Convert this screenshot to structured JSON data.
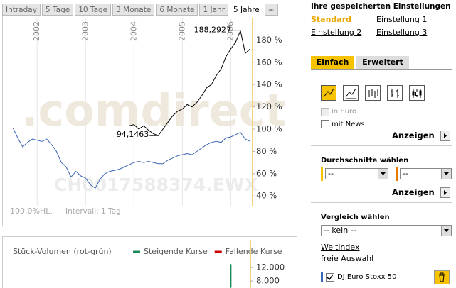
{
  "tabs": [
    "Intraday",
    "5 Tage",
    "10 Tage",
    "3 Monate",
    "6 Monate",
    "1 Jahr",
    "5 Jahre",
    "∞"
  ],
  "active_tab": "5 Jahre",
  "chart_data": [
    {
      "type": "line",
      "watermark_logo": ".comdirect",
      "watermark_symbol": "CH0017588374.EWX",
      "x": [
        2001.5,
        2001.6,
        2001.7,
        2001.8,
        2001.9,
        2002.0,
        2002.1,
        2002.2,
        2002.3,
        2002.4,
        2002.5,
        2002.6,
        2002.7,
        2002.8,
        2002.9,
        2003.0,
        2003.1,
        2003.2,
        2003.3,
        2003.4,
        2003.5,
        2003.6,
        2003.7,
        2003.8,
        2003.9,
        2004.0,
        2004.1,
        2004.2,
        2004.3,
        2004.4,
        2004.5,
        2004.6,
        2004.7,
        2004.8,
        2004.9,
        2005.0,
        2005.1,
        2005.2,
        2005.3,
        2005.4,
        2005.5,
        2005.6,
        2005.7,
        2005.8,
        2005.9,
        2006.0,
        2006.1,
        2006.2,
        2006.3,
        2006.4
      ],
      "xlim": [
        2001.35,
        2006.45
      ],
      "xticks": [
        2002,
        2003,
        2004,
        2005,
        2006
      ],
      "ylim": [
        31.2,
        200
      ],
      "yticks": [
        {
          "value": 40,
          "label": "40 %"
        },
        {
          "value": 60,
          "label": "60 %"
        },
        {
          "value": 80,
          "label": "80 %"
        },
        {
          "value": 100,
          "label": "100 %"
        },
        {
          "value": 120,
          "label": "120 %"
        },
        {
          "value": 140,
          "label": "140 %"
        },
        {
          "value": 160,
          "label": "160 %"
        },
        {
          "value": 180,
          "label": "180 %"
        }
      ],
      "series": [
        {
          "color": "#000000",
          "values": [
            null,
            null,
            null,
            null,
            null,
            null,
            null,
            null,
            null,
            null,
            null,
            null,
            null,
            null,
            null,
            null,
            null,
            null,
            null,
            null,
            null,
            null,
            null,
            null,
            103,
            104,
            100,
            103,
            99,
            96,
            94.1463,
            100,
            106,
            112,
            116,
            118,
            122,
            120,
            124,
            130,
            137,
            140,
            148,
            154,
            165,
            172,
            178,
            188.2927,
            168,
            172
          ]
        },
        {
          "color": "#3a64b4",
          "values": [
            101,
            92,
            84,
            88,
            91,
            90,
            89,
            91,
            86,
            80,
            70,
            66,
            57,
            62,
            58,
            56,
            50,
            47,
            55,
            60,
            62,
            63,
            64,
            66,
            68,
            70,
            71,
            70,
            71,
            70,
            69,
            69,
            72,
            74,
            76,
            77,
            78,
            77,
            80,
            83,
            86,
            88,
            89,
            88,
            92,
            93,
            95,
            97,
            91,
            89
          ]
        }
      ],
      "annotations": [
        {
          "x": 2006.2,
          "value": 188.2927,
          "label": "188,2927"
        },
        {
          "x": 2004.5,
          "value": 94.1463,
          "label": "94,1463"
        }
      ],
      "scale_label": "100,0%HL.",
      "interval_label": "Intervall: 1 Tag"
    },
    {
      "type": "bar",
      "title": "Stück-Volumen (rot-grün)",
      "xlim": [
        2001.35,
        2006.45
      ],
      "ylim": [
        6000,
        13500
      ],
      "yticks": [
        {
          "value": 8000,
          "label": "8.000"
        },
        {
          "value": 12000,
          "label": "12.000"
        }
      ],
      "series": [
        {
          "name": "Steigende Kurse",
          "color": "#1a8a5a",
          "x": [
            2006.0
          ],
          "values": [
            13000
          ]
        },
        {
          "name": "Fallende Kurse",
          "color": "#cc0000",
          "x": [],
          "values": []
        }
      ]
    }
  ],
  "settings": {
    "title": "Ihre gespeicherten Einstellungen",
    "items": [
      "Standard",
      "Einstellung 1",
      "Einstellung 2",
      "Einstellung 3"
    ],
    "active": "Standard"
  },
  "panel_tabs": [
    "Einfach",
    "Erweitert"
  ],
  "active_panel_tab": "Einfach",
  "options": {
    "in_euro": {
      "label": "in Euro",
      "checked": false,
      "disabled": true
    },
    "mit_news": {
      "label": "mit News",
      "checked": false
    },
    "button": "Anzeigen"
  },
  "averages": {
    "title": "Durchschnitte wählen",
    "selects": [
      "--",
      "--"
    ],
    "button": "Anzeigen"
  },
  "comparison": {
    "title": "Vergleich wählen",
    "select": "-- kein --",
    "links": [
      "Weltindex",
      "freie Auswahl"
    ],
    "items": [
      {
        "label": "DJ Euro Stoxx 50",
        "checked": true,
        "color": "#3a64b4"
      }
    ]
  }
}
